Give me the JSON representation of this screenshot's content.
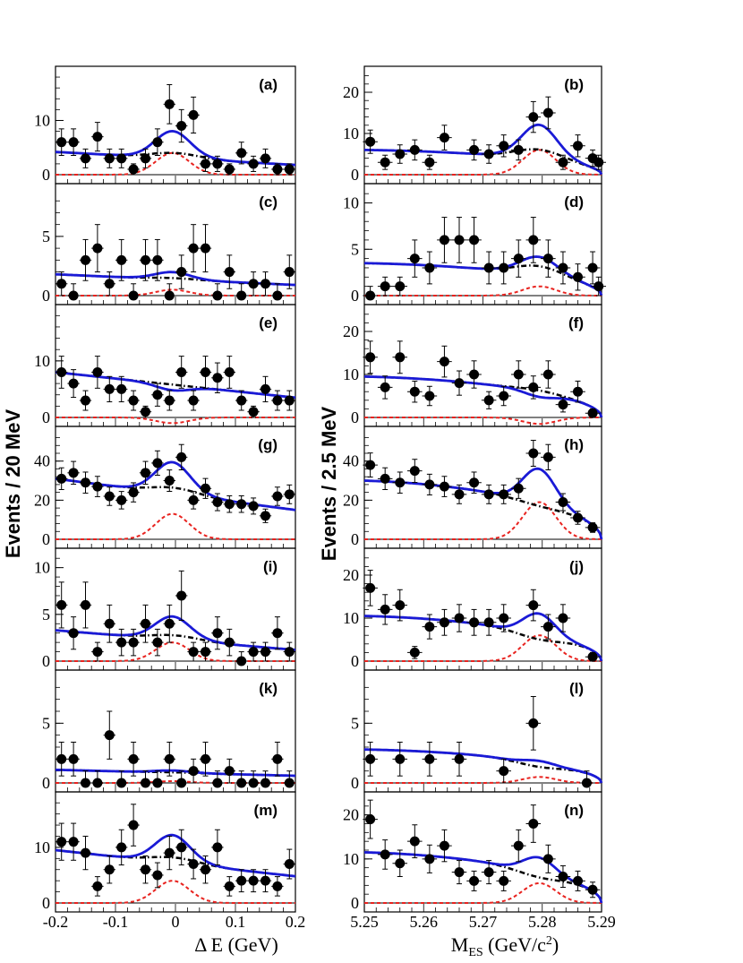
{
  "axis_text": {
    "left_ylabel": "Events / 20 MeV",
    "right_ylabel": "Events / 2.5 MeV",
    "left_xlabel": "Δ E (GeV)",
    "right_xlabel_main": "M",
    "right_xlabel_sub": "ES",
    "right_xlabel_unit": " (GeV/c",
    "right_xlabel_sup": "2",
    "right_xlabel_close": ")",
    "left_xticks": [
      "-0.2",
      "-0.1",
      "0",
      "0.1",
      "0.2"
    ],
    "right_xticks": [
      "5.25",
      "5.26",
      "5.27",
      "5.28",
      "5.29"
    ]
  },
  "colors": {
    "total_fit": "#1a1ad6",
    "background": "#000000",
    "signal": "#e8231f",
    "points": "#000000"
  },
  "chart_data": [
    {
      "panel": "(a)",
      "type": "scatter",
      "x_variable": "Delta E (GeV)",
      "xlim": [
        -0.2,
        0.2
      ],
      "ylim": [
        0,
        19
      ],
      "yticks": [
        0,
        10
      ],
      "points": [
        [
          -0.19,
          6
        ],
        [
          -0.17,
          6
        ],
        [
          -0.15,
          3
        ],
        [
          -0.13,
          7
        ],
        [
          -0.11,
          3
        ],
        [
          -0.09,
          3
        ],
        [
          -0.07,
          1
        ],
        [
          -0.05,
          3
        ],
        [
          -0.03,
          6
        ],
        [
          -0.01,
          13
        ],
        [
          0.01,
          9
        ],
        [
          0.03,
          11
        ],
        [
          0.05,
          2
        ],
        [
          0.07,
          2
        ],
        [
          0.09,
          1
        ],
        [
          0.11,
          4
        ],
        [
          0.13,
          2
        ],
        [
          0.15,
          3
        ],
        [
          0.17,
          1
        ],
        [
          0.19,
          1
        ]
      ],
      "signal_peak": 4,
      "bkg_at_low": 4.2,
      "bkg_at_high": 1.8
    },
    {
      "panel": "(b)",
      "type": "scatter",
      "x_variable": "M_ES (GeV/c^2)",
      "xlim": [
        5.25,
        5.29
      ],
      "ylim": [
        0,
        25
      ],
      "yticks": [
        0,
        10,
        20
      ],
      "points": [
        [
          5.251,
          8
        ],
        [
          5.2535,
          3
        ],
        [
          5.256,
          5
        ],
        [
          5.2585,
          6
        ],
        [
          5.261,
          3
        ],
        [
          5.2635,
          9
        ],
        [
          5.2685,
          6
        ],
        [
          5.271,
          5
        ],
        [
          5.2735,
          7
        ],
        [
          5.276,
          6
        ],
        [
          5.2785,
          14
        ],
        [
          5.281,
          15
        ],
        [
          5.2835,
          3
        ],
        [
          5.286,
          7
        ],
        [
          5.2885,
          4
        ],
        [
          5.2895,
          3
        ]
      ],
      "signal_peak": 6,
      "bkg_at_low": 6,
      "bkg_peak": 7.5
    },
    {
      "panel": "(c)",
      "type": "scatter",
      "x_variable": "Delta E (GeV)",
      "xlim": [
        -0.2,
        0.2
      ],
      "ylim": [
        0,
        9
      ],
      "yticks": [
        0,
        5
      ],
      "points": [
        [
          -0.19,
          1
        ],
        [
          -0.17,
          0
        ],
        [
          -0.15,
          3
        ],
        [
          -0.13,
          4
        ],
        [
          -0.11,
          1
        ],
        [
          -0.09,
          3
        ],
        [
          -0.07,
          0
        ],
        [
          -0.05,
          3
        ],
        [
          -0.03,
          3
        ],
        [
          -0.01,
          0
        ],
        [
          0.01,
          2
        ],
        [
          0.03,
          4
        ],
        [
          0.05,
          4
        ],
        [
          0.07,
          0
        ],
        [
          0.09,
          2
        ],
        [
          0.11,
          0
        ],
        [
          0.13,
          1
        ],
        [
          0.15,
          1
        ],
        [
          0.17,
          0
        ],
        [
          0.19,
          2
        ]
      ],
      "signal_peak": 0.5,
      "bkg_at_low": 1.8,
      "bkg_at_high": 0.9
    },
    {
      "panel": "(d)",
      "type": "scatter",
      "x_variable": "M_ES (GeV/c^2)",
      "xlim": [
        5.25,
        5.29
      ],
      "ylim": [
        0,
        11.5
      ],
      "yticks": [
        0,
        5,
        10
      ],
      "points": [
        [
          5.251,
          0
        ],
        [
          5.2535,
          1
        ],
        [
          5.256,
          1
        ],
        [
          5.2585,
          4
        ],
        [
          5.261,
          3
        ],
        [
          5.2635,
          6
        ],
        [
          5.266,
          6
        ],
        [
          5.2685,
          6
        ],
        [
          5.271,
          3
        ],
        [
          5.2735,
          3
        ],
        [
          5.276,
          4
        ],
        [
          5.2785,
          6
        ],
        [
          5.281,
          4
        ],
        [
          5.2835,
          3
        ],
        [
          5.286,
          2
        ],
        [
          5.2885,
          3
        ],
        [
          5.2895,
          1
        ]
      ],
      "signal_peak": 1,
      "bkg_at_low": 3.5,
      "bkg_peak": 4
    },
    {
      "panel": "(e)",
      "type": "scatter",
      "x_variable": "Delta E (GeV)",
      "xlim": [
        -0.2,
        0.2
      ],
      "ylim": [
        0,
        19
      ],
      "yticks": [
        0,
        10
      ],
      "points": [
        [
          -0.19,
          8
        ],
        [
          -0.17,
          6
        ],
        [
          -0.15,
          3
        ],
        [
          -0.13,
          8
        ],
        [
          -0.11,
          5
        ],
        [
          -0.09,
          5
        ],
        [
          -0.07,
          3
        ],
        [
          -0.05,
          1
        ],
        [
          -0.03,
          4
        ],
        [
          -0.01,
          3
        ],
        [
          0.01,
          8
        ],
        [
          0.03,
          3
        ],
        [
          0.05,
          8
        ],
        [
          0.07,
          7
        ],
        [
          0.09,
          8
        ],
        [
          0.11,
          3
        ],
        [
          0.13,
          1
        ],
        [
          0.15,
          5
        ],
        [
          0.17,
          3
        ],
        [
          0.19,
          3
        ]
      ],
      "signal_peak": -1,
      "bkg_at_low": 8,
      "bkg_at_high": 3.5
    },
    {
      "panel": "(f)",
      "type": "scatter",
      "x_variable": "M_ES (GeV/c^2)",
      "xlim": [
        5.25,
        5.29
      ],
      "ylim": [
        0,
        25
      ],
      "yticks": [
        0,
        10,
        20
      ],
      "points": [
        [
          5.251,
          14
        ],
        [
          5.2535,
          7
        ],
        [
          5.256,
          14
        ],
        [
          5.2585,
          6
        ],
        [
          5.261,
          5
        ],
        [
          5.2635,
          13
        ],
        [
          5.266,
          8
        ],
        [
          5.2685,
          10
        ],
        [
          5.271,
          4
        ],
        [
          5.2735,
          5
        ],
        [
          5.276,
          10
        ],
        [
          5.2785,
          7
        ],
        [
          5.281,
          10
        ],
        [
          5.2835,
          3
        ],
        [
          5.286,
          6
        ],
        [
          5.2885,
          1
        ]
      ],
      "signal_peak": -1.5,
      "bkg_at_low": 9.5,
      "bkg_peak": 8.5
    },
    {
      "panel": "(g)",
      "type": "scatter",
      "x_variable": "Delta E (GeV)",
      "xlim": [
        -0.2,
        0.2
      ],
      "ylim": [
        0,
        55
      ],
      "yticks": [
        0,
        20,
        40
      ],
      "points": [
        [
          -0.19,
          31
        ],
        [
          -0.17,
          34
        ],
        [
          -0.15,
          29
        ],
        [
          -0.13,
          27
        ],
        [
          -0.11,
          22
        ],
        [
          -0.09,
          20
        ],
        [
          -0.07,
          24
        ],
        [
          -0.05,
          34
        ],
        [
          -0.03,
          39
        ],
        [
          -0.01,
          30
        ],
        [
          0.01,
          42
        ],
        [
          0.03,
          20
        ],
        [
          0.05,
          26
        ],
        [
          0.07,
          19
        ],
        [
          0.09,
          18
        ],
        [
          0.11,
          18
        ],
        [
          0.13,
          17
        ],
        [
          0.15,
          12
        ],
        [
          0.17,
          22
        ],
        [
          0.19,
          23
        ]
      ],
      "signal_peak": 13,
      "bkg_at_low": 31,
      "bkg_at_high": 15
    },
    {
      "panel": "(h)",
      "type": "scatter",
      "x_variable": "M_ES (GeV/c^2)",
      "xlim": [
        5.25,
        5.29
      ],
      "ylim": [
        0,
        55
      ],
      "yticks": [
        0,
        20,
        40
      ],
      "points": [
        [
          5.251,
          38
        ],
        [
          5.2535,
          31
        ],
        [
          5.256,
          29
        ],
        [
          5.2585,
          35
        ],
        [
          5.261,
          28
        ],
        [
          5.2635,
          27
        ],
        [
          5.266,
          23
        ],
        [
          5.2685,
          29
        ],
        [
          5.271,
          23
        ],
        [
          5.2735,
          23
        ],
        [
          5.276,
          26
        ],
        [
          5.2785,
          44
        ],
        [
          5.281,
          42
        ],
        [
          5.2835,
          19
        ],
        [
          5.286,
          11
        ],
        [
          5.2885,
          6
        ]
      ],
      "signal_peak": 19,
      "bkg_at_low": 30,
      "bkg_peak": 24
    },
    {
      "panel": "(i)",
      "type": "scatter",
      "x_variable": "Delta E (GeV)",
      "xlim": [
        -0.2,
        0.2
      ],
      "ylim": [
        0,
        11.5
      ],
      "yticks": [
        0,
        5,
        10
      ],
      "points": [
        [
          -0.19,
          6
        ],
        [
          -0.17,
          3
        ],
        [
          -0.15,
          6
        ],
        [
          -0.13,
          1
        ],
        [
          -0.11,
          4
        ],
        [
          -0.09,
          2
        ],
        [
          -0.07,
          2
        ],
        [
          -0.05,
          4
        ],
        [
          -0.03,
          2
        ],
        [
          -0.01,
          4
        ],
        [
          0.01,
          7
        ],
        [
          0.03,
          1
        ],
        [
          0.05,
          1
        ],
        [
          0.07,
          3
        ],
        [
          0.09,
          2
        ],
        [
          0.11,
          0
        ],
        [
          0.13,
          1
        ],
        [
          0.15,
          1
        ],
        [
          0.17,
          3
        ],
        [
          0.19,
          1
        ]
      ],
      "signal_peak": 2,
      "bkg_at_low": 3.3,
      "bkg_at_high": 1.2
    },
    {
      "panel": "(j)",
      "type": "scatter",
      "x_variable": "M_ES (GeV/c^2)",
      "xlim": [
        5.25,
        5.29
      ],
      "ylim": [
        0,
        25
      ],
      "yticks": [
        0,
        10,
        20
      ],
      "points": [
        [
          5.251,
          17
        ],
        [
          5.2535,
          12
        ],
        [
          5.256,
          13
        ],
        [
          5.2585,
          2
        ],
        [
          5.261,
          8
        ],
        [
          5.2635,
          9
        ],
        [
          5.266,
          10
        ],
        [
          5.2685,
          9
        ],
        [
          5.271,
          9
        ],
        [
          5.2735,
          10
        ],
        [
          5.2785,
          13
        ],
        [
          5.281,
          8
        ],
        [
          5.2835,
          10
        ],
        [
          5.2885,
          1
        ]
      ],
      "signal_peak": 6,
      "bkg_at_low": 10.5,
      "bkg_peak": 7.5
    },
    {
      "panel": "(k)",
      "type": "scatter",
      "x_variable": "Delta E (GeV)",
      "xlim": [
        -0.2,
        0.2
      ],
      "ylim": [
        0,
        9
      ],
      "yticks": [
        0,
        5
      ],
      "points": [
        [
          -0.19,
          2
        ],
        [
          -0.17,
          2
        ],
        [
          -0.15,
          0
        ],
        [
          -0.13,
          0
        ],
        [
          -0.11,
          4
        ],
        [
          -0.09,
          0
        ],
        [
          -0.07,
          2
        ],
        [
          -0.05,
          0
        ],
        [
          -0.03,
          0
        ],
        [
          -0.01,
          2
        ],
        [
          0.01,
          0
        ],
        [
          0.03,
          1
        ],
        [
          0.05,
          2
        ],
        [
          0.07,
          0
        ],
        [
          0.09,
          1
        ],
        [
          0.11,
          0
        ],
        [
          0.13,
          0
        ],
        [
          0.15,
          0
        ],
        [
          0.17,
          2
        ],
        [
          0.19,
          0
        ]
      ],
      "signal_peak": 0.15,
      "bkg_at_low": 1.1,
      "bkg_at_high": 0.6
    },
    {
      "panel": "(l)",
      "type": "scatter",
      "x_variable": "M_ES (GeV/c^2)",
      "xlim": [
        5.25,
        5.29
      ],
      "ylim": [
        0,
        9
      ],
      "yticks": [
        0,
        5
      ],
      "points": [
        [
          5.251,
          2
        ],
        [
          5.256,
          2
        ],
        [
          5.261,
          2
        ],
        [
          5.266,
          2
        ],
        [
          5.2735,
          1
        ],
        [
          5.2785,
          5
        ],
        [
          5.2875,
          0
        ]
      ],
      "signal_peak": 0.5,
      "bkg_at_low": 2.8,
      "bkg_peak": 2.0
    },
    {
      "panel": "(m)",
      "type": "scatter",
      "x_variable": "Delta E (GeV)",
      "xlim": [
        -0.2,
        0.2
      ],
      "ylim": [
        0,
        19
      ],
      "yticks": [
        0,
        10
      ],
      "points": [
        [
          -0.19,
          11
        ],
        [
          -0.17,
          11
        ],
        [
          -0.15,
          9
        ],
        [
          -0.13,
          3
        ],
        [
          -0.11,
          6
        ],
        [
          -0.09,
          10
        ],
        [
          -0.07,
          14
        ],
        [
          -0.05,
          6
        ],
        [
          -0.03,
          5
        ],
        [
          -0.01,
          9
        ],
        [
          0.01,
          10
        ],
        [
          0.03,
          7
        ],
        [
          0.05,
          6
        ],
        [
          0.07,
          10
        ],
        [
          0.09,
          3
        ],
        [
          0.11,
          4
        ],
        [
          0.13,
          4
        ],
        [
          0.15,
          4
        ],
        [
          0.17,
          3
        ],
        [
          0.19,
          7
        ]
      ],
      "signal_peak": 4,
      "bkg_at_low": 9.5,
      "bkg_at_high": 4.8
    },
    {
      "panel": "(n)",
      "type": "scatter",
      "x_variable": "M_ES (GeV/c^2)",
      "xlim": [
        5.25,
        5.29
      ],
      "ylim": [
        0,
        24
      ],
      "yticks": [
        0,
        10,
        20
      ],
      "points": [
        [
          5.251,
          19
        ],
        [
          5.2535,
          11
        ],
        [
          5.256,
          9
        ],
        [
          5.2585,
          14
        ],
        [
          5.261,
          10
        ],
        [
          5.2635,
          13
        ],
        [
          5.266,
          7
        ],
        [
          5.2685,
          5
        ],
        [
          5.271,
          7
        ],
        [
          5.2735,
          5
        ],
        [
          5.276,
          13
        ],
        [
          5.2785,
          18
        ],
        [
          5.281,
          10
        ],
        [
          5.2835,
          6
        ],
        [
          5.286,
          5
        ],
        [
          5.2885,
          3
        ]
      ],
      "signal_peak": 4.5,
      "bkg_at_low": 11.5,
      "bkg_peak": 8.5
    }
  ]
}
